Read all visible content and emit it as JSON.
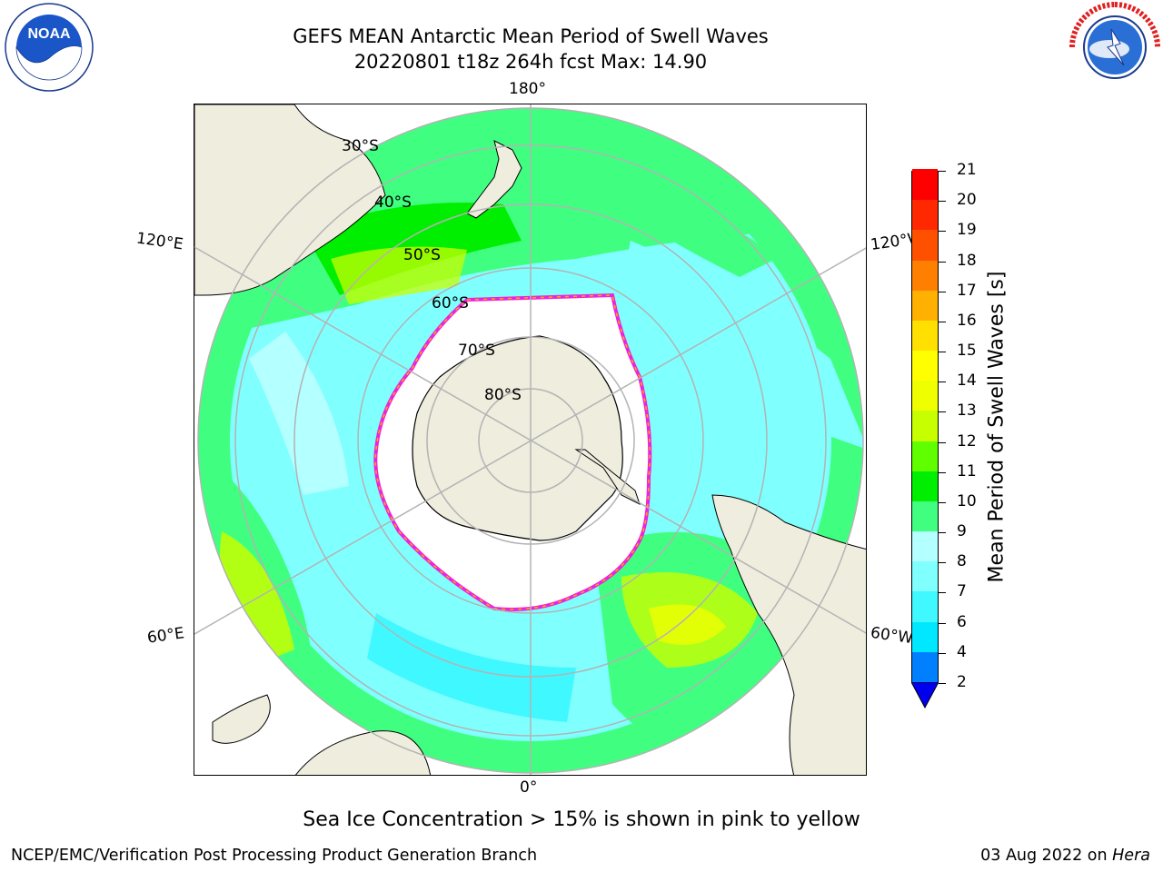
{
  "header": {
    "title_line1": "GEFS MEAN Antarctic Mean Period of Swell Waves",
    "title_line2": "20220801 t18z 264h fcst   Max: 14.90"
  },
  "logos": {
    "noaa": {
      "text": "NOAA",
      "ring_text": "NATIONAL OCEANIC AND ATMOSPHERIC ADMINISTRATION · U.S. DEPARTMENT OF COMMERCE"
    },
    "nws": {
      "ring_text": "NATIONAL WEATHER SERVICE"
    }
  },
  "map": {
    "projection": "south-polar-stereographic",
    "longitude_labels": {
      "top": "180°",
      "upper_left": "120°E",
      "upper_right": "120°W",
      "lower_left": "60°E",
      "lower_right": "60°W",
      "bottom": "0°"
    },
    "latitude_labels": [
      "30°S",
      "40°S",
      "50°S",
      "60°S",
      "70°S",
      "80°S"
    ],
    "colors": {
      "land": "#efedde",
      "grid": "#b3b3b3",
      "ice_edge_pink": "#ee22dd",
      "ice_edge_orange": "#ffa500"
    }
  },
  "colorbar": {
    "title": "Mean Period of Swell Waves [s]",
    "levels": [
      "2",
      "4",
      "6",
      "7",
      "8",
      "9",
      "10",
      "11",
      "12",
      "13",
      "14",
      "15",
      "16",
      "17",
      "18",
      "19",
      "20",
      "21"
    ],
    "colors": [
      "#0000ee",
      "#0080ff",
      "#00e8ff",
      "#40f8ff",
      "#80ffff",
      "#b4ffff",
      "#40ff80",
      "#00ee00",
      "#60ff00",
      "#c8ff00",
      "#f0ff00",
      "#ffff00",
      "#ffe000",
      "#ffb000",
      "#ff8000",
      "#ff5000",
      "#ff2800",
      "#ff0000"
    ],
    "extend": "min"
  },
  "caption": "Sea Ice Concentration > 15% is shown in pink to yellow",
  "footer": {
    "left": "NCEP/EMC/Verification Post Processing Product Generation Branch",
    "date": "03 Aug 2022 on ",
    "host": "Hera"
  }
}
